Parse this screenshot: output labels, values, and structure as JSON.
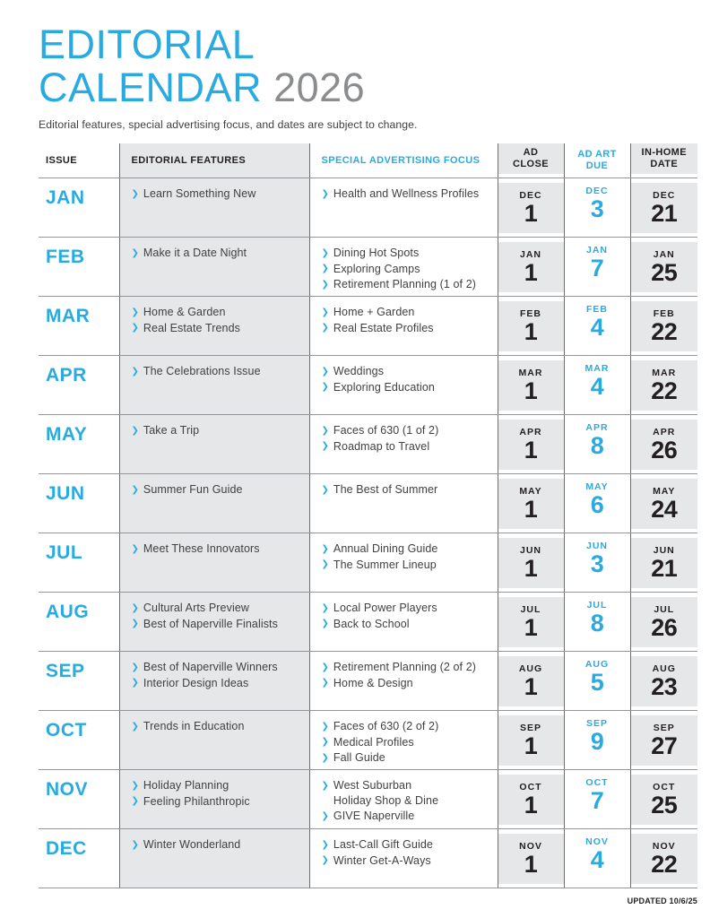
{
  "colors": {
    "accent_blue": "#29abe2",
    "cell_gray": "#e6e7e8",
    "text_dark": "#414042",
    "number_black": "#231f20",
    "year_gray": "#8a8c8e",
    "line_vertical": "#6d6e71",
    "line_horizontal": "#939598"
  },
  "icons": {
    "chevron": "❯"
  },
  "header": {
    "title_line1": "EDITORIAL",
    "title_line2": "CALENDAR",
    "year": "2026",
    "subtitle": "Editorial features, special advertising focus, and dates are subject to change."
  },
  "table": {
    "columns": [
      {
        "key": "issue",
        "label": "ISSUE"
      },
      {
        "key": "features",
        "label": "EDITORIAL FEATURES"
      },
      {
        "key": "advertising",
        "label": "SPECIAL ADVERTISING FOCUS"
      },
      {
        "key": "ad_close",
        "label": "AD\nCLOSE"
      },
      {
        "key": "ad_art_due",
        "label": "AD ART\nDUE"
      },
      {
        "key": "in_home",
        "label": "IN-HOME\nDATE"
      }
    ],
    "rows": [
      {
        "issue": "JAN",
        "features": [
          "Learn Something New"
        ],
        "advertising": [
          "Health and Wellness Profiles"
        ],
        "ad_close": {
          "month": "DEC",
          "day": "1"
        },
        "ad_art_due": {
          "month": "DEC",
          "day": "3"
        },
        "in_home": {
          "month": "DEC",
          "day": "21"
        }
      },
      {
        "issue": "FEB",
        "features": [
          "Make it a Date Night"
        ],
        "advertising": [
          "Dining Hot Spots",
          "Exploring Camps",
          "Retirement Planning (1 of 2)"
        ],
        "ad_close": {
          "month": "JAN",
          "day": "1"
        },
        "ad_art_due": {
          "month": "JAN",
          "day": "7"
        },
        "in_home": {
          "month": "JAN",
          "day": "25"
        }
      },
      {
        "issue": "MAR",
        "features": [
          "Home & Garden",
          "Real Estate Trends"
        ],
        "advertising": [
          "Home + Garden",
          "Real Estate Profiles"
        ],
        "ad_close": {
          "month": "FEB",
          "day": "1"
        },
        "ad_art_due": {
          "month": "FEB",
          "day": "4"
        },
        "in_home": {
          "month": "FEB",
          "day": "22"
        }
      },
      {
        "issue": "APR",
        "features": [
          "The Celebrations Issue"
        ],
        "advertising": [
          "Weddings",
          "Exploring Education"
        ],
        "ad_close": {
          "month": "MAR",
          "day": "1"
        },
        "ad_art_due": {
          "month": "MAR",
          "day": "4"
        },
        "in_home": {
          "month": "MAR",
          "day": "22"
        }
      },
      {
        "issue": "MAY",
        "features": [
          "Take a Trip"
        ],
        "advertising": [
          "Faces of 630 (1 of 2)",
          "Roadmap to Travel"
        ],
        "ad_close": {
          "month": "APR",
          "day": "1"
        },
        "ad_art_due": {
          "month": "APR",
          "day": "8"
        },
        "in_home": {
          "month": "APR",
          "day": "26"
        }
      },
      {
        "issue": "JUN",
        "features": [
          "Summer Fun Guide"
        ],
        "advertising": [
          "The Best of Summer"
        ],
        "ad_close": {
          "month": "MAY",
          "day": "1"
        },
        "ad_art_due": {
          "month": "MAY",
          "day": "6"
        },
        "in_home": {
          "month": "MAY",
          "day": "24"
        }
      },
      {
        "issue": "JUL",
        "features": [
          "Meet These Innovators"
        ],
        "advertising": [
          "Annual Dining Guide",
          "The Summer Lineup"
        ],
        "ad_close": {
          "month": "JUN",
          "day": "1"
        },
        "ad_art_due": {
          "month": "JUN",
          "day": "3"
        },
        "in_home": {
          "month": "JUN",
          "day": "21"
        }
      },
      {
        "issue": "AUG",
        "features": [
          "Cultural Arts Preview",
          "Best of Naperville Finalists"
        ],
        "advertising": [
          "Local Power Players",
          "Back to School"
        ],
        "ad_close": {
          "month": "JUL",
          "day": "1"
        },
        "ad_art_due": {
          "month": "JUL",
          "day": "8"
        },
        "in_home": {
          "month": "JUL",
          "day": "26"
        }
      },
      {
        "issue": "SEP",
        "features": [
          "Best of Naperville Winners",
          "Interior Design Ideas"
        ],
        "advertising": [
          "Retirement Planning (2 of 2)",
          "Home & Design"
        ],
        "ad_close": {
          "month": "AUG",
          "day": "1"
        },
        "ad_art_due": {
          "month": "AUG",
          "day": "5"
        },
        "in_home": {
          "month": "AUG",
          "day": "23"
        }
      },
      {
        "issue": "OCT",
        "features": [
          "Trends in Education"
        ],
        "advertising": [
          "Faces of 630 (2 of 2)",
          "Medical Profiles",
          "Fall Guide"
        ],
        "ad_close": {
          "month": "SEP",
          "day": "1"
        },
        "ad_art_due": {
          "month": "SEP",
          "day": "9"
        },
        "in_home": {
          "month": "SEP",
          "day": "27"
        }
      },
      {
        "issue": "NOV",
        "features": [
          "Holiday Planning",
          "Feeling Philanthropic"
        ],
        "advertising": [
          "West Suburban\nHoliday Shop & Dine",
          "GIVE Naperville"
        ],
        "ad_close": {
          "month": "OCT",
          "day": "1"
        },
        "ad_art_due": {
          "month": "OCT",
          "day": "7"
        },
        "in_home": {
          "month": "OCT",
          "day": "25"
        }
      },
      {
        "issue": "DEC",
        "features": [
          "Winter Wonderland"
        ],
        "advertising": [
          "Last-Call Gift Guide",
          "Winter Get-A-Ways"
        ],
        "ad_close": {
          "month": "NOV",
          "day": "1"
        },
        "ad_art_due": {
          "month": "NOV",
          "day": "4"
        },
        "in_home": {
          "month": "NOV",
          "day": "22"
        }
      }
    ]
  },
  "footer": {
    "updated": "UPDATED 10/6/25"
  }
}
